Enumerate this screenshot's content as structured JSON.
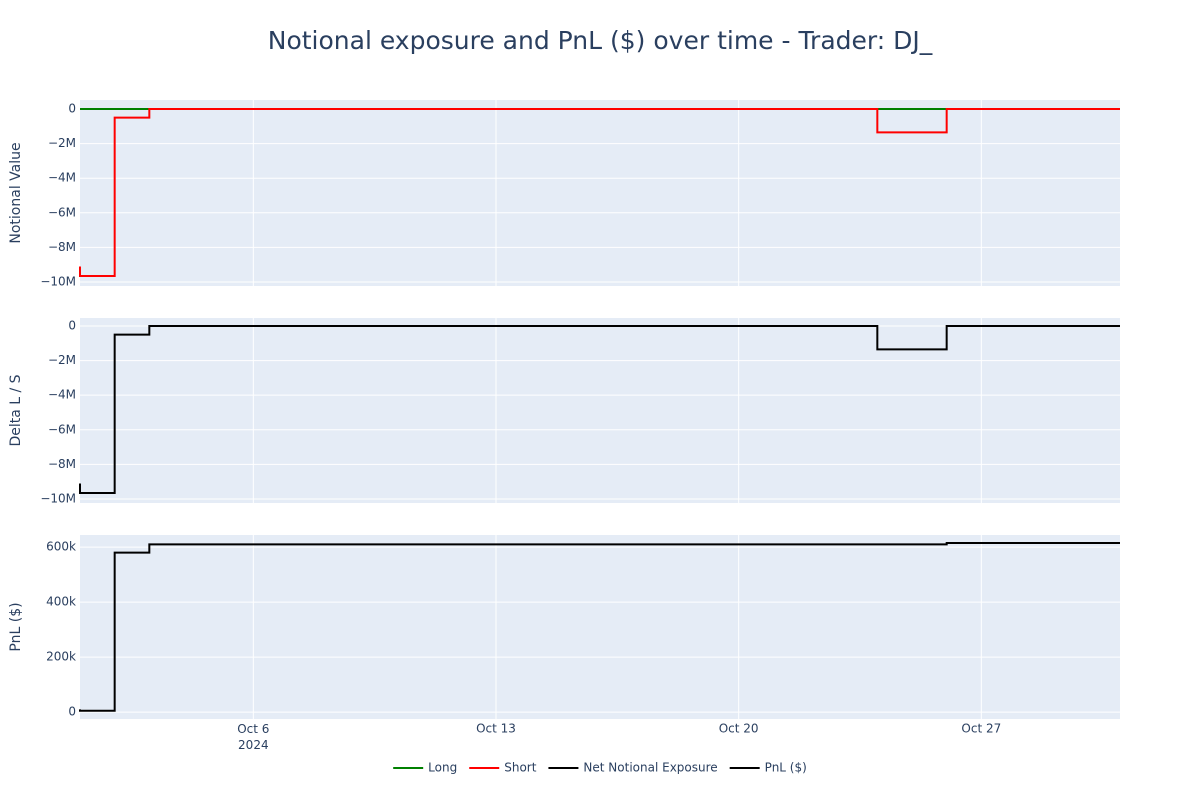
{
  "chart_data": {
    "type": "line",
    "title": "Notional exposure and PnL ($) over time - Trader: DJ_",
    "xlim": [
      "2024-10-01",
      "2024-10-31"
    ],
    "xticks": [
      {
        "value": "2024-10-06",
        "label": "Oct 6\n2024"
      },
      {
        "value": "2024-10-13",
        "label": "Oct 13"
      },
      {
        "value": "2024-10-20",
        "label": "Oct 20"
      },
      {
        "value": "2024-10-27",
        "label": "Oct 27"
      }
    ],
    "grid": true,
    "legend": "bottom",
    "panels": [
      {
        "y_label": "Notional Value",
        "ylim": [
          -10230000,
          520000
        ],
        "yticks": [
          0,
          {
            "value": -2000000,
            "label": "−2M"
          },
          {
            "value": -4000000,
            "label": "−4M"
          },
          {
            "value": -6000000,
            "label": "−6M"
          },
          {
            "value": -8000000,
            "label": "−8M"
          },
          {
            "value": -10000000,
            "label": "−10M"
          }
        ],
        "x": [
          "2024-10-01",
          "2024-10-01",
          "2024-10-02",
          "2024-10-02",
          "2024-10-03",
          "2024-10-03",
          "2024-10-24",
          "2024-10-24",
          "2024-10-26",
          "2024-10-26",
          "2024-10-31"
        ],
        "series": [
          {
            "name": "Long",
            "color": "#008000",
            "values": [
              0,
              0,
              0,
              0,
              0,
              0,
              0,
              0,
              0,
              0,
              0
            ]
          },
          {
            "name": "Short",
            "color": "#ff0000",
            "values": [
              -9100000,
              -9650000,
              -9650000,
              -500000,
              -500000,
              0,
              0,
              -1350000,
              -1350000,
              0,
              0
            ]
          }
        ]
      },
      {
        "y_label": "Delta L / S",
        "ylim": [
          -10230000,
          460000
        ],
        "yticks": [
          0,
          {
            "value": -2000000,
            "label": "−2M"
          },
          {
            "value": -4000000,
            "label": "−4M"
          },
          {
            "value": -6000000,
            "label": "−6M"
          },
          {
            "value": -8000000,
            "label": "−8M"
          },
          {
            "value": -10000000,
            "label": "−10M"
          }
        ],
        "x": [
          "2024-10-01",
          "2024-10-01",
          "2024-10-02",
          "2024-10-02",
          "2024-10-03",
          "2024-10-03",
          "2024-10-24",
          "2024-10-24",
          "2024-10-26",
          "2024-10-26",
          "2024-10-31"
        ],
        "series": [
          {
            "name": "Net Notional Exposure",
            "color": "#000000",
            "values": [
              -9100000,
              -9650000,
              -9650000,
              -500000,
              -500000,
              0,
              0,
              -1350000,
              -1350000,
              0,
              0
            ]
          }
        ]
      },
      {
        "y_label": "PnL ($)",
        "ylim": [
          -25000,
          644000
        ],
        "yticks": [
          0,
          {
            "value": 200000,
            "label": "200k"
          },
          {
            "value": 400000,
            "label": "400k"
          },
          {
            "value": 600000,
            "label": "600k"
          }
        ],
        "x": [
          "2024-10-01",
          "2024-10-01",
          "2024-10-02",
          "2024-10-02",
          "2024-10-03",
          "2024-10-03",
          "2024-10-26",
          "2024-10-26",
          "2024-10-31"
        ],
        "series": [
          {
            "name": "PnL ($)",
            "color": "#000000",
            "values": [
              10000,
              5000,
              5000,
              580000,
              580000,
              610000,
              610000,
              615000,
              615000
            ]
          }
        ]
      }
    ]
  }
}
